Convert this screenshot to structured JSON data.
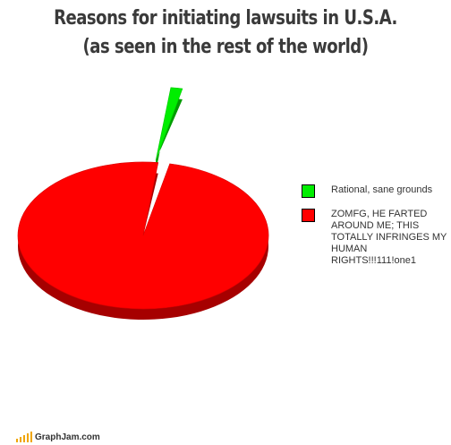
{
  "chart_data": {
    "type": "pie",
    "title_lines": [
      "Reasons for initiating lawsuits in U.S.A.",
      "(as seen in the rest of the world)"
    ],
    "slices": [
      {
        "label": "Rational, sane grounds",
        "value": 1.5,
        "color": "#00ee00"
      },
      {
        "label": "ZOMFG, HE FARTED AROUND ME; THIS TOTALLY INFRINGES MY HUMAN RIGHTS!!!111!one1",
        "value": 98.5,
        "color": "#ff0000"
      }
    ],
    "legend_position": "right"
  },
  "footer": {
    "site": "GraphJam.com",
    "icon": "signal-bars-icon"
  }
}
